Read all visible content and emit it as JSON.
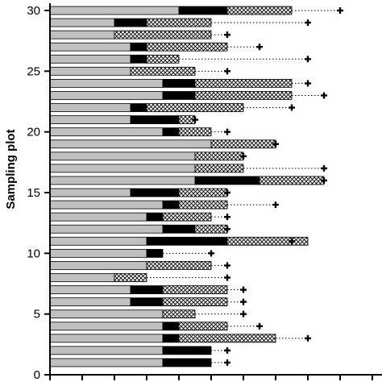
{
  "chart_data": {
    "type": "bar",
    "orientation": "horizontal",
    "stacked": true,
    "ylabel": "Sampling plot",
    "xlabel": "",
    "y_tick_labels": [
      "0",
      "5",
      "10",
      "15",
      "20",
      "25",
      "30"
    ],
    "y_ticks": [
      0,
      5,
      10,
      15,
      20,
      25,
      30
    ],
    "ylim": [
      0,
      30.6
    ],
    "xlim": [
      0,
      20
    ],
    "grid": false,
    "legend": "none",
    "colors": {
      "segment_1": "#c0c0c0",
      "segment_2": "#000000",
      "segment_3_pattern": "crosshatch",
      "whisker": "#000000"
    },
    "plots": [
      1,
      2,
      3,
      4,
      5,
      6,
      7,
      8,
      9,
      10,
      11,
      12,
      13,
      14,
      15,
      16,
      17,
      18,
      19,
      20,
      21,
      22,
      23,
      24,
      25,
      26,
      27,
      28,
      29,
      30
    ],
    "series": [
      {
        "values": [
          7,
          7,
          7,
          7,
          7,
          5,
          5,
          4,
          6,
          6,
          6,
          7,
          6,
          7,
          5,
          9,
          9,
          9,
          10,
          7,
          5,
          5,
          7,
          7,
          5,
          5,
          5,
          4,
          4,
          8
        ]
      },
      {
        "values": [
          3,
          3,
          1,
          1,
          0,
          2,
          2,
          0,
          0,
          1,
          5,
          2,
          1,
          1,
          3,
          4,
          0,
          0,
          0,
          1,
          3,
          1,
          2,
          2,
          0,
          1,
          1,
          0,
          2,
          3
        ]
      },
      {
        "values": [
          0,
          0,
          6,
          3,
          2,
          4,
          4,
          2,
          4,
          0,
          5,
          2,
          3,
          3,
          3,
          4,
          3,
          3,
          4,
          2,
          1,
          6,
          6,
          6,
          4,
          2,
          5,
          6,
          4,
          4
        ]
      }
    ],
    "whisker_end": [
      11,
      11,
      16,
      13,
      12,
      12,
      12,
      11,
      11,
      10,
      15,
      11,
      11,
      14,
      11,
      17,
      17,
      12,
      14,
      11,
      9,
      15,
      17,
      16,
      11,
      16,
      13,
      11,
      16,
      18
    ]
  }
}
